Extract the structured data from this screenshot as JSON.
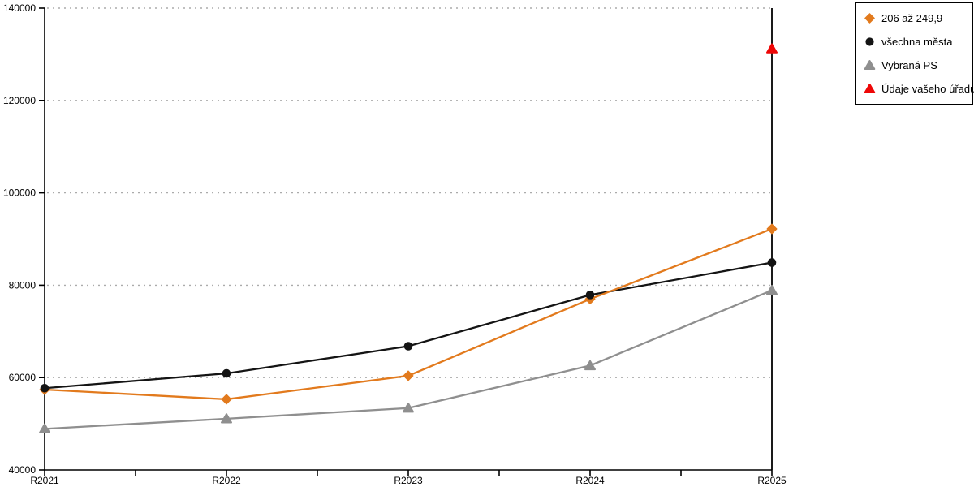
{
  "chart_data": {
    "type": "line",
    "title": "",
    "xlabel": "",
    "ylabel": "",
    "categories": [
      "R2021",
      "R2022",
      "R2023",
      "R2024",
      "R2025"
    ],
    "series": [
      {
        "name": "206 až 249,9",
        "color": "#e27a1d",
        "marker": "diamond",
        "values": [
          57400,
          55300,
          60400,
          77000,
          92200
        ]
      },
      {
        "name": "všechna města",
        "color": "#141414",
        "marker": "circle",
        "values": [
          57700,
          60900,
          66800,
          77900,
          84900
        ]
      },
      {
        "name": "Vybraná PS",
        "color": "#8f8f8f",
        "marker": "triangle",
        "values": [
          48900,
          51100,
          53400,
          62600,
          78900
        ]
      },
      {
        "name": "Údaje vašeho úřadu",
        "color": "#ee0707",
        "marker": "triangle",
        "values": [
          null,
          null,
          null,
          null,
          131200
        ],
        "line_visible": false
      }
    ],
    "ylim": [
      40000,
      140000
    ],
    "yticks": [
      40000,
      60000,
      80000,
      100000,
      120000,
      140000
    ],
    "x_minor_ticks": true,
    "grid": "horizontal-dotted",
    "gridline_color": "#ababab",
    "axis_color": "#000000",
    "legend_position": "top-right"
  }
}
